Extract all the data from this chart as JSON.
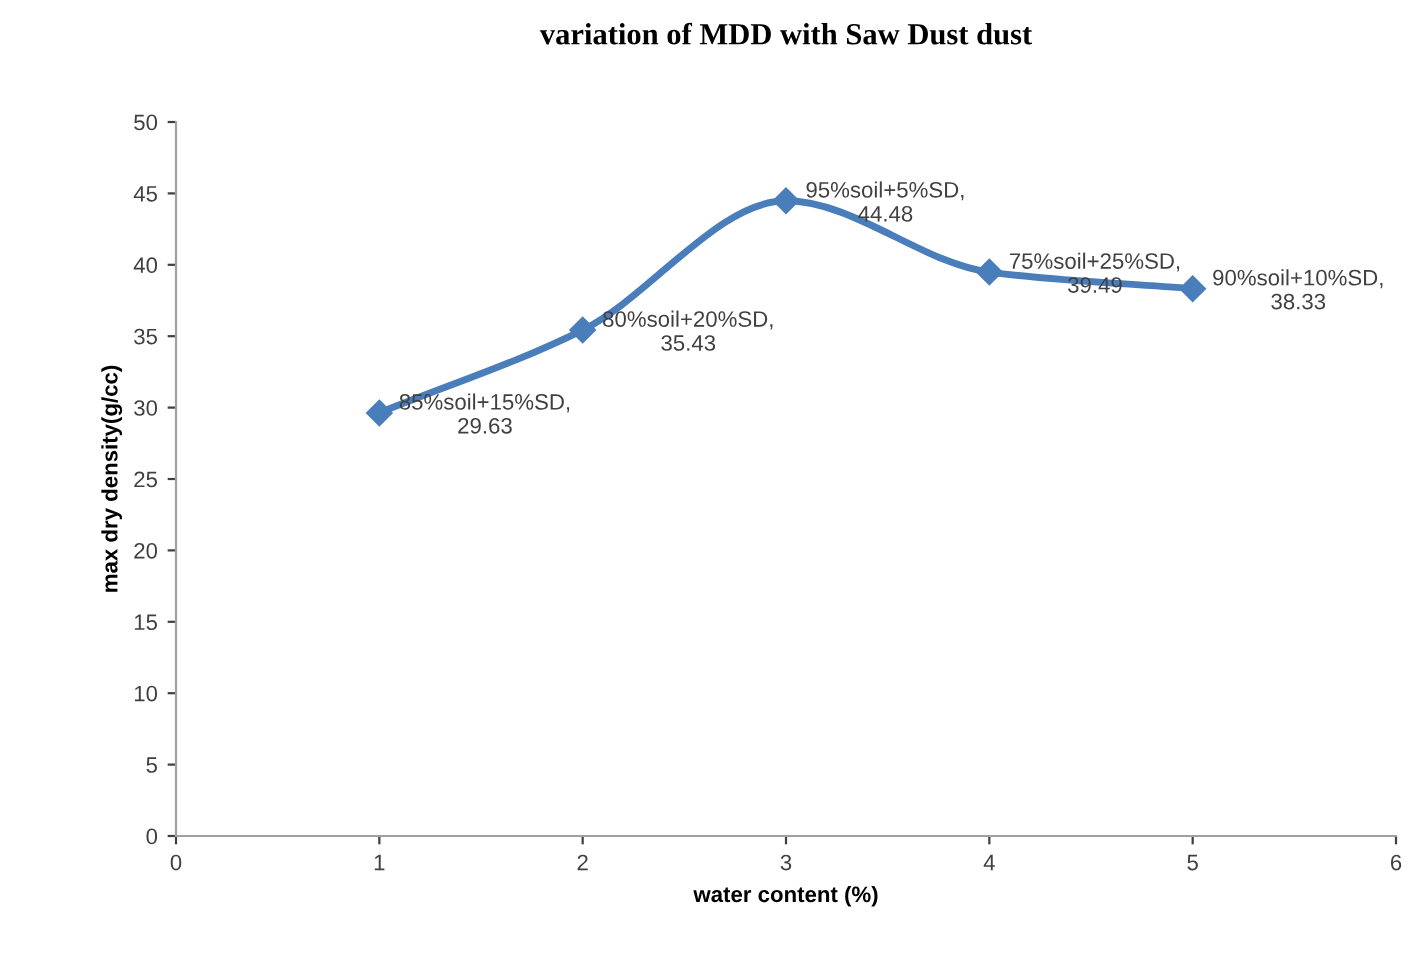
{
  "chart_data": {
    "type": "line",
    "title": "variation of MDD with Saw Dust dust",
    "xlabel": "water content (%)",
    "ylabel": "max dry density(g/cc)",
    "x": [
      1,
      2,
      3,
      4,
      5
    ],
    "series": [
      {
        "color": "#4a7ebb",
        "values": [
          29.63,
          35.43,
          44.48,
          39.49,
          38.33
        ],
        "value_labels": [
          "85%soil+15%SD,\n29.63",
          "80%soil+20%SD,\n35.43",
          "95%soil+5%SD,\n44.48",
          "75%soil+25%SD,\n39.49",
          "90%soil+10%SD,\n38.33"
        ]
      }
    ],
    "xlim": [
      0,
      6
    ],
    "xticks": [
      0,
      1,
      2,
      3,
      4,
      5,
      6
    ],
    "ylim": [
      0,
      50
    ],
    "yticks": [
      0,
      5,
      10,
      15,
      20,
      25,
      30,
      35,
      40,
      45,
      50
    ],
    "grid": false,
    "marker": "diamond",
    "line_style": "solid"
  }
}
